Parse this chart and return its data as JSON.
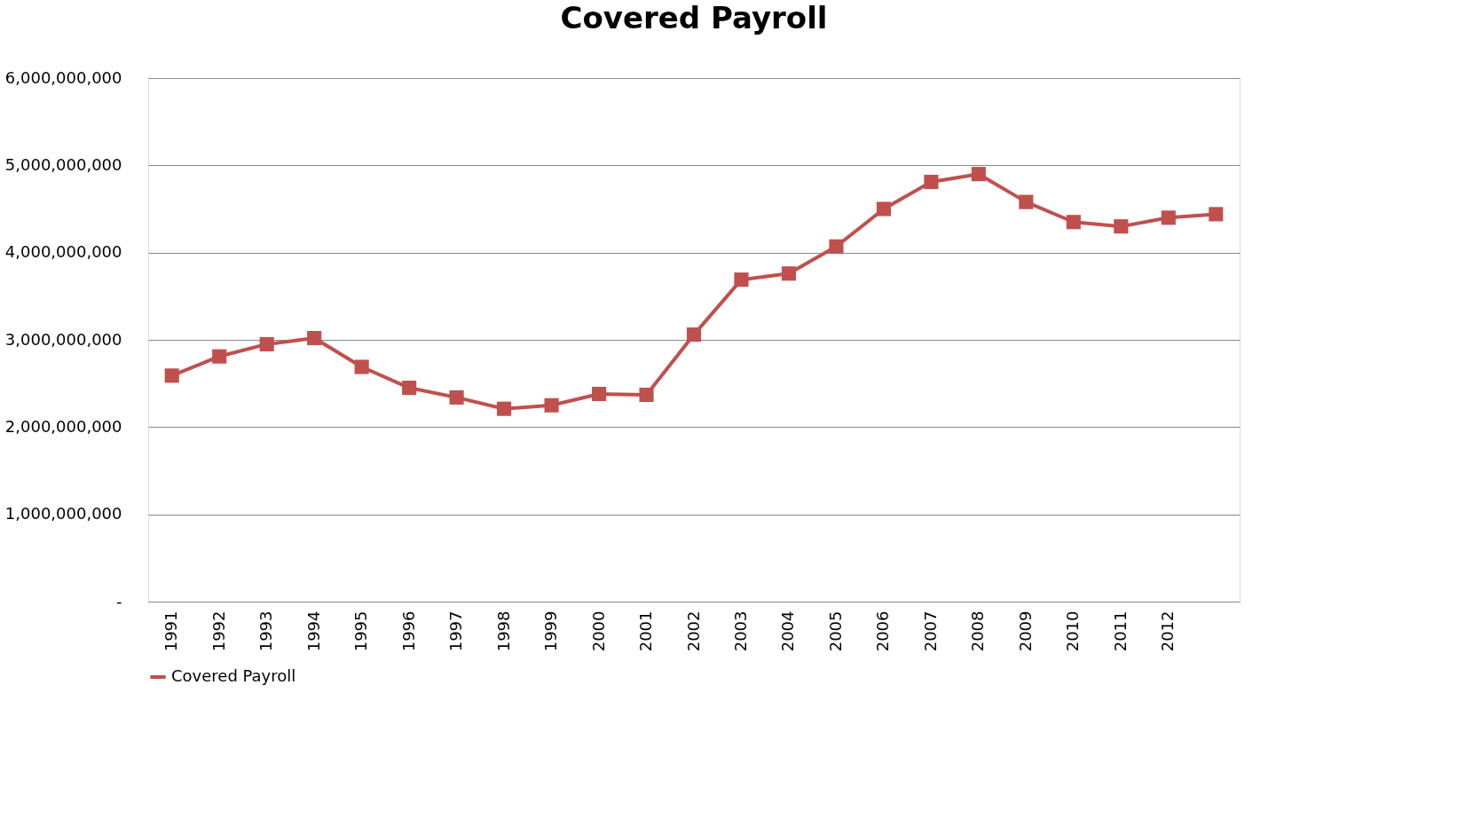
{
  "chart_data": {
    "type": "line",
    "title": "Covered Payroll",
    "categories": [
      "1991",
      "1992",
      "1993",
      "1994",
      "1995",
      "1996",
      "1997",
      "1998",
      "1999",
      "2000",
      "2001",
      "2002",
      "2003",
      "2004",
      "2005",
      "2006",
      "2007",
      "2008",
      "2009",
      "2010",
      "2011",
      "2012",
      null
    ],
    "series": [
      {
        "name": "Covered Payroll",
        "color": "#c0504d",
        "values": [
          2590000000,
          2810000000,
          2950000000,
          3020000000,
          2690000000,
          2450000000,
          2340000000,
          2210000000,
          2250000000,
          2380000000,
          2370000000,
          3060000000,
          3690000000,
          3760000000,
          4070000000,
          4500000000,
          4810000000,
          4900000000,
          4580000000,
          4350000000,
          4300000000,
          4400000000,
          4440000000
        ]
      }
    ],
    "ylim": [
      0,
      6000000000
    ],
    "yticks": [
      {
        "value": 0,
        "label": "-"
      },
      {
        "value": 1000000000,
        "label": "1,000,000,000"
      },
      {
        "value": 2000000000,
        "label": "2,000,000,000"
      },
      {
        "value": 3000000000,
        "label": "3,000,000,000"
      },
      {
        "value": 4000000000,
        "label": "4,000,000,000"
      },
      {
        "value": 5000000000,
        "label": "5,000,000,000"
      },
      {
        "value": 6000000000,
        "label": "6,000,000,000"
      }
    ],
    "grid": "y",
    "legend": "bottom",
    "marker": "square",
    "line_style": "solid"
  }
}
